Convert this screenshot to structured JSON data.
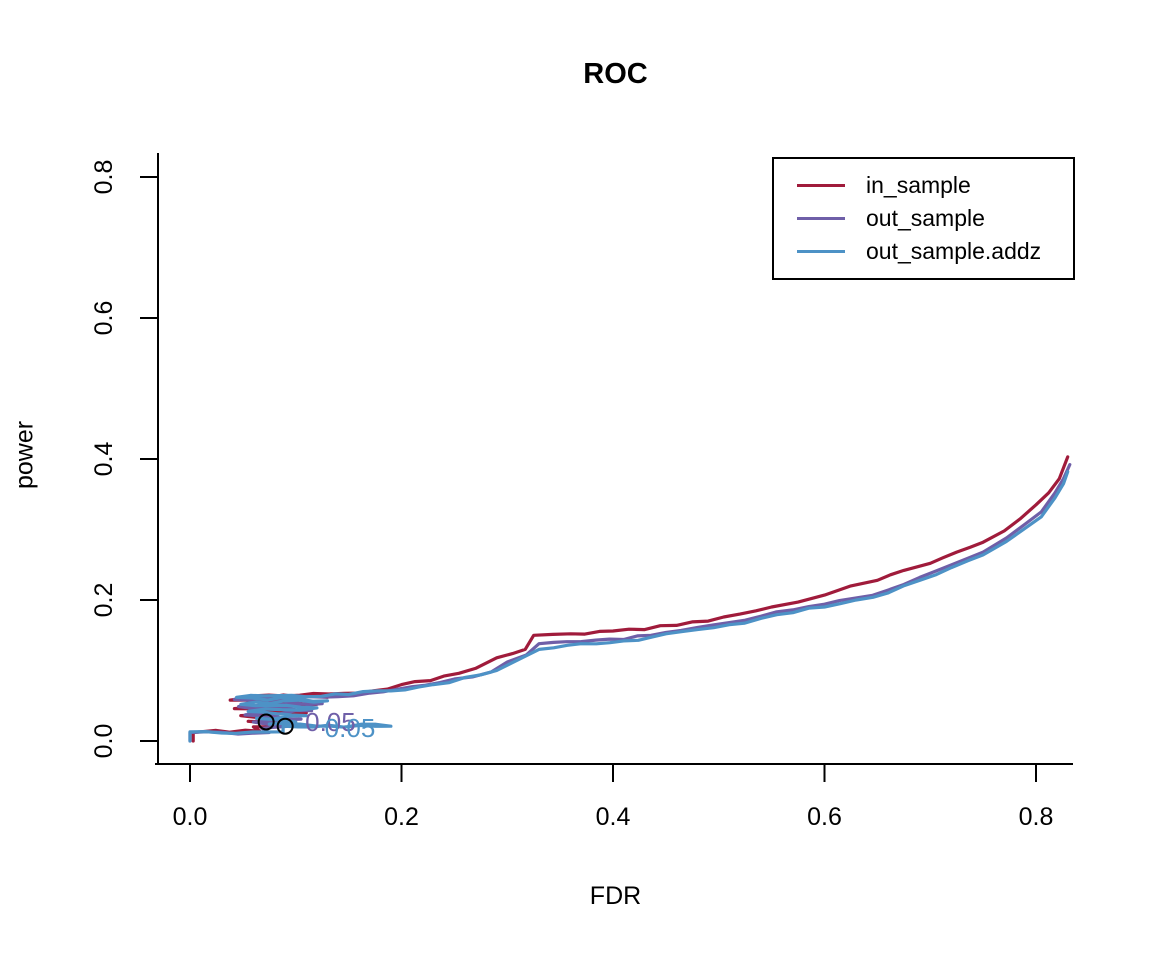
{
  "title": "ROC",
  "axes": {
    "xlabel": "FDR",
    "ylabel": "power",
    "x_tick_labels": [
      "0.0",
      "0.2",
      "0.4",
      "0.6",
      "0.8"
    ],
    "y_tick_labels": [
      "0.0",
      "0.2",
      "0.4",
      "0.6",
      "0.8"
    ]
  },
  "legend": {
    "items": [
      {
        "label": "in_sample",
        "color": "#A01B3B"
      },
      {
        "label": "out_sample",
        "color": "#6F5FA8"
      },
      {
        "label": "out_sample.addz",
        "color": "#4D92C6"
      }
    ]
  },
  "colors": {
    "axis": "#000000",
    "background": "#ffffff",
    "marker": "#000000"
  },
  "chart_data": {
    "type": "line",
    "title": "ROC",
    "xlabel": "FDR",
    "ylabel": "power",
    "xlim": [
      0,
      0.835
    ],
    "ylim": [
      0,
      0.8
    ],
    "x_tick_values": [
      0.0,
      0.2,
      0.4,
      0.6,
      0.8
    ],
    "y_tick_values": [
      0.0,
      0.2,
      0.4,
      0.6,
      0.8
    ],
    "grid": false,
    "legend_position": "top-right",
    "series": [
      {
        "name": "in_sample",
        "color": "#A01B3B",
        "points": [
          [
            0.003,
            0.0
          ],
          [
            0.003,
            0.012
          ],
          [
            0.01,
            0.013
          ],
          [
            0.066,
            0.014
          ],
          [
            0.06,
            0.02
          ],
          [
            0.09,
            0.022
          ],
          [
            0.055,
            0.028
          ],
          [
            0.1,
            0.03
          ],
          [
            0.048,
            0.036
          ],
          [
            0.11,
            0.04
          ],
          [
            0.042,
            0.046
          ],
          [
            0.12,
            0.052
          ],
          [
            0.038,
            0.058
          ],
          [
            0.13,
            0.062
          ],
          [
            0.06,
            0.064
          ],
          [
            0.16,
            0.068
          ],
          [
            0.2,
            0.08
          ],
          [
            0.24,
            0.092
          ],
          [
            0.27,
            0.103
          ],
          [
            0.29,
            0.118
          ],
          [
            0.305,
            0.124
          ],
          [
            0.317,
            0.13
          ],
          [
            0.325,
            0.15
          ],
          [
            0.36,
            0.152
          ],
          [
            0.4,
            0.156
          ],
          [
            0.43,
            0.158
          ],
          [
            0.46,
            0.164
          ],
          [
            0.49,
            0.17
          ],
          [
            0.52,
            0.18
          ],
          [
            0.55,
            0.19
          ],
          [
            0.575,
            0.197
          ],
          [
            0.6,
            0.207
          ],
          [
            0.625,
            0.22
          ],
          [
            0.65,
            0.228
          ],
          [
            0.675,
            0.242
          ],
          [
            0.7,
            0.252
          ],
          [
            0.725,
            0.268
          ],
          [
            0.75,
            0.282
          ],
          [
            0.77,
            0.298
          ],
          [
            0.785,
            0.315
          ],
          [
            0.8,
            0.335
          ],
          [
            0.812,
            0.352
          ],
          [
            0.822,
            0.372
          ],
          [
            0.83,
            0.403
          ]
        ]
      },
      {
        "name": "out_sample",
        "color": "#6F5FA8",
        "points": [
          [
            0.0,
            0.0
          ],
          [
            0.0,
            0.012
          ],
          [
            0.075,
            0.012
          ],
          [
            0.068,
            0.018
          ],
          [
            0.095,
            0.021
          ],
          [
            0.06,
            0.027
          ],
          [
            0.105,
            0.031
          ],
          [
            0.052,
            0.037
          ],
          [
            0.115,
            0.043
          ],
          [
            0.046,
            0.049
          ],
          [
            0.125,
            0.053
          ],
          [
            0.042,
            0.059
          ],
          [
            0.14,
            0.063
          ],
          [
            0.17,
            0.068
          ],
          [
            0.21,
            0.077
          ],
          [
            0.25,
            0.088
          ],
          [
            0.285,
            0.098
          ],
          [
            0.3,
            0.112
          ],
          [
            0.318,
            0.122
          ],
          [
            0.33,
            0.138
          ],
          [
            0.37,
            0.141
          ],
          [
            0.41,
            0.144
          ],
          [
            0.45,
            0.154
          ],
          [
            0.48,
            0.161
          ],
          [
            0.51,
            0.168
          ],
          [
            0.54,
            0.177
          ],
          [
            0.57,
            0.186
          ],
          [
            0.6,
            0.194
          ],
          [
            0.63,
            0.203
          ],
          [
            0.66,
            0.214
          ],
          [
            0.69,
            0.232
          ],
          [
            0.72,
            0.25
          ],
          [
            0.75,
            0.268
          ],
          [
            0.772,
            0.288
          ],
          [
            0.79,
            0.308
          ],
          [
            0.805,
            0.325
          ],
          [
            0.818,
            0.352
          ],
          [
            0.826,
            0.372
          ],
          [
            0.832,
            0.392
          ]
        ]
      },
      {
        "name": "out_sample.addz",
        "color": "#4D92C6",
        "points": [
          [
            0.0,
            0.0
          ],
          [
            0.0,
            0.013
          ],
          [
            0.088,
            0.013
          ],
          [
            0.088,
            0.021
          ],
          [
            0.19,
            0.021
          ],
          [
            0.075,
            0.024
          ],
          [
            0.1,
            0.027
          ],
          [
            0.063,
            0.032
          ],
          [
            0.11,
            0.036
          ],
          [
            0.055,
            0.042
          ],
          [
            0.12,
            0.047
          ],
          [
            0.048,
            0.052
          ],
          [
            0.13,
            0.057
          ],
          [
            0.044,
            0.062
          ],
          [
            0.15,
            0.066
          ],
          [
            0.19,
            0.071
          ],
          [
            0.23,
            0.08
          ],
          [
            0.26,
            0.09
          ],
          [
            0.29,
            0.1
          ],
          [
            0.31,
            0.115
          ],
          [
            0.33,
            0.13
          ],
          [
            0.37,
            0.138
          ],
          [
            0.41,
            0.142
          ],
          [
            0.45,
            0.152
          ],
          [
            0.48,
            0.158
          ],
          [
            0.51,
            0.165
          ],
          [
            0.54,
            0.174
          ],
          [
            0.57,
            0.182
          ],
          [
            0.6,
            0.19
          ],
          [
            0.63,
            0.2
          ],
          [
            0.66,
            0.21
          ],
          [
            0.69,
            0.228
          ],
          [
            0.72,
            0.246
          ],
          [
            0.75,
            0.264
          ],
          [
            0.772,
            0.283
          ],
          [
            0.79,
            0.302
          ],
          [
            0.805,
            0.318
          ],
          [
            0.818,
            0.345
          ],
          [
            0.826,
            0.365
          ],
          [
            0.83,
            0.382
          ]
        ]
      }
    ],
    "marked_points": [
      {
        "x": 0.072,
        "y": 0.027,
        "label": "0.05",
        "label_color": "#6F5FA8",
        "marker": "open-circle"
      },
      {
        "x": 0.09,
        "y": 0.021,
        "label": "0.05",
        "label_color": "#4D92C6",
        "marker": "open-circle"
      }
    ],
    "threshold_label": "0.05"
  }
}
